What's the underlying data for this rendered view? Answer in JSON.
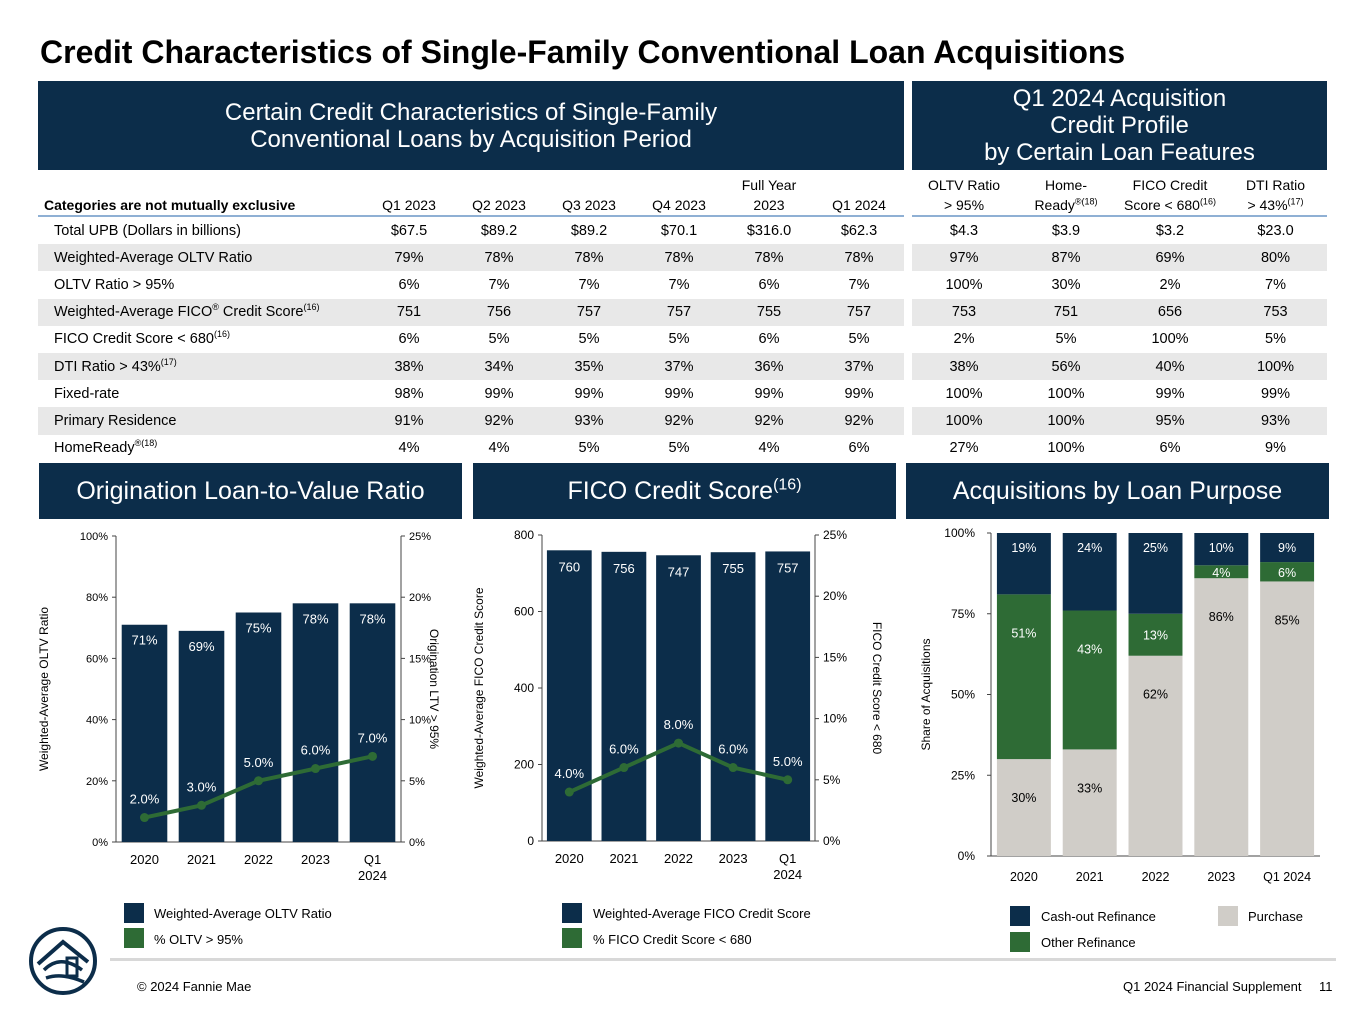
{
  "title": "Credit Characteristics of Single-Family Conventional Loan Acquisitions",
  "left_header": [
    "Certain Credit Characteristics of Single-Family",
    "Conventional Loans by Acquisition Period"
  ],
  "right_header": [
    "Q1 2024 Acquisition",
    "Credit Profile",
    "by Certain Loan Features"
  ],
  "table": {
    "first_col_header": "Categories are not mutually exclusive",
    "period_headers": [
      {
        "l1": "",
        "l2": "Q1 2023"
      },
      {
        "l1": "",
        "l2": "Q2 2023"
      },
      {
        "l1": "",
        "l2": "Q3 2023"
      },
      {
        "l1": "",
        "l2": "Q4 2023"
      },
      {
        "l1": "Full Year",
        "l2": "2023"
      },
      {
        "l1": "",
        "l2": "Q1 2024"
      }
    ],
    "feature_headers": [
      {
        "l1": "OLTV Ratio",
        "l2": "> 95%",
        "sup": ""
      },
      {
        "l1": "Home-",
        "l2": "Ready",
        "sup": "®(18)"
      },
      {
        "l1": "FICO Credit",
        "l2": "Score < 680",
        "sup": "(16)"
      },
      {
        "l1": "DTI Ratio",
        "l2": "> 43%",
        "sup": "(17)"
      }
    ],
    "rows": [
      {
        "label": "Total UPB (Dollars in billions)",
        "sup": "",
        "values": [
          "$67.5",
          "$89.2",
          "$89.2",
          "$70.1",
          "$316.0",
          "$62.3"
        ],
        "features": [
          "$4.3",
          "$3.9",
          "$3.2",
          "$23.0"
        ]
      },
      {
        "label": "Weighted-Average OLTV Ratio",
        "sup": "",
        "values": [
          "79%",
          "78%",
          "78%",
          "78%",
          "78%",
          "78%"
        ],
        "features": [
          "97%",
          "87%",
          "69%",
          "80%"
        ]
      },
      {
        "label": "OLTV Ratio > 95%",
        "sup": "",
        "values": [
          "6%",
          "7%",
          "7%",
          "7%",
          "6%",
          "7%"
        ],
        "features": [
          "100%",
          "30%",
          "2%",
          "7%"
        ]
      },
      {
        "label": "Weighted-Average FICO",
        "sup": "®",
        "label_suffix": " Credit Score",
        "sup2": "(16)",
        "values": [
          "751",
          "756",
          "757",
          "757",
          "755",
          "757"
        ],
        "features": [
          "753",
          "751",
          "656",
          "753"
        ]
      },
      {
        "label": "FICO Credit Score < 680",
        "sup": "(16)",
        "values": [
          "6%",
          "5%",
          "5%",
          "5%",
          "6%",
          "5%"
        ],
        "features": [
          "2%",
          "5%",
          "100%",
          "5%"
        ]
      },
      {
        "label": "DTI Ratio > 43%",
        "sup": "(17)",
        "values": [
          "38%",
          "34%",
          "35%",
          "37%",
          "36%",
          "37%"
        ],
        "features": [
          "38%",
          "56%",
          "40%",
          "100%"
        ]
      },
      {
        "label": "Fixed-rate",
        "sup": "",
        "values": [
          "98%",
          "99%",
          "99%",
          "99%",
          "99%",
          "99%"
        ],
        "features": [
          "100%",
          "100%",
          "99%",
          "99%"
        ]
      },
      {
        "label": "Primary Residence",
        "sup": "",
        "values": [
          "91%",
          "92%",
          "93%",
          "92%",
          "92%",
          "92%"
        ],
        "features": [
          "100%",
          "100%",
          "95%",
          "93%"
        ]
      },
      {
        "label": "HomeReady",
        "sup": "®(18)",
        "values": [
          "4%",
          "4%",
          "5%",
          "5%",
          "4%",
          "6%"
        ],
        "features": [
          "27%",
          "100%",
          "6%",
          "9%"
        ]
      }
    ]
  },
  "colors": {
    "navy": "#0c2d4a",
    "green": "#2e6b35",
    "gray": "#d0cdc8",
    "alt_row": "#e8e8e8"
  },
  "chart_data": [
    {
      "type": "bar",
      "panel_title": "Origination Loan-to-Value Ratio",
      "categories": [
        "2020",
        "2021",
        "2022",
        "2023",
        "Q1 2024"
      ],
      "ylabel": "Weighted-Average OLTV Ratio",
      "y2label": "Origination LTV > 95%",
      "ylim": [
        0,
        100
      ],
      "yticks": [
        "0%",
        "20%",
        "40%",
        "60%",
        "80%",
        "100%"
      ],
      "y2lim": [
        0,
        25
      ],
      "y2ticks": [
        "0%",
        "5%",
        "10%",
        "15%",
        "20%",
        "25%"
      ],
      "series": [
        {
          "name": "Weighted-Average OLTV Ratio",
          "type": "bar",
          "values": [
            71,
            69,
            75,
            78,
            78
          ],
          "labels": [
            "71%",
            "69%",
            "75%",
            "78%",
            "78%"
          ]
        },
        {
          "name": "% OLTV > 95%",
          "type": "line",
          "axis": "secondary",
          "values": [
            2.0,
            3.0,
            5.0,
            6.0,
            7.0
          ],
          "labels": [
            "2.0%",
            "3.0%",
            "5.0%",
            "6.0%",
            "7.0%"
          ]
        }
      ]
    },
    {
      "type": "bar",
      "panel_title": "FICO Credit Score",
      "panel_title_sup": "(16)",
      "categories": [
        "2020",
        "2021",
        "2022",
        "2023",
        "Q1 2024"
      ],
      "ylabel": "Weighted-Average FICO Credit Score",
      "y2label": "FICO Credit Score < 680",
      "ylim": [
        0,
        800
      ],
      "yticks": [
        "0",
        "200",
        "400",
        "600",
        "800"
      ],
      "y2lim": [
        0,
        25
      ],
      "y2ticks": [
        "0%",
        "5%",
        "10%",
        "15%",
        "20%",
        "25%"
      ],
      "series": [
        {
          "name": "Weighted-Average FICO Credit Score",
          "type": "bar",
          "values": [
            760,
            756,
            747,
            755,
            757
          ],
          "labels": [
            "760",
            "756",
            "747",
            "755",
            "757"
          ]
        },
        {
          "name": "% FICO Credit Score < 680",
          "type": "line",
          "axis": "secondary",
          "values": [
            4.0,
            6.0,
            8.0,
            6.0,
            5.0
          ],
          "labels": [
            "4.0%",
            "6.0%",
            "8.0%",
            "6.0%",
            "5.0%"
          ]
        }
      ]
    },
    {
      "type": "bar",
      "stacked": true,
      "panel_title": "Acquisitions by Loan Purpose",
      "categories": [
        "2020",
        "2021",
        "2022",
        "2023",
        "Q1 2024"
      ],
      "ylabel": "Share of Acquisitions",
      "ylim": [
        0,
        100
      ],
      "yticks": [
        "0%",
        "25%",
        "50%",
        "75%",
        "100%"
      ],
      "series": [
        {
          "name": "Purchase",
          "values": [
            30,
            33,
            62,
            86,
            85
          ],
          "labels": [
            "30%",
            "33%",
            "62%",
            "86%",
            "85%"
          ]
        },
        {
          "name": "Other Refinance",
          "values": [
            51,
            43,
            13,
            4,
            6
          ],
          "labels": [
            "51%",
            "43%",
            "13%",
            "4%",
            "6%"
          ]
        },
        {
          "name": "Cash-out Refinance",
          "values": [
            19,
            24,
            25,
            10,
            9
          ],
          "labels": [
            "19%",
            "24%",
            "25%",
            "10%",
            "9%"
          ]
        }
      ]
    }
  ],
  "footer": {
    "copyright": "© 2024 Fannie Mae",
    "doc": "Q1 2024 Financial Supplement",
    "page": "11"
  }
}
